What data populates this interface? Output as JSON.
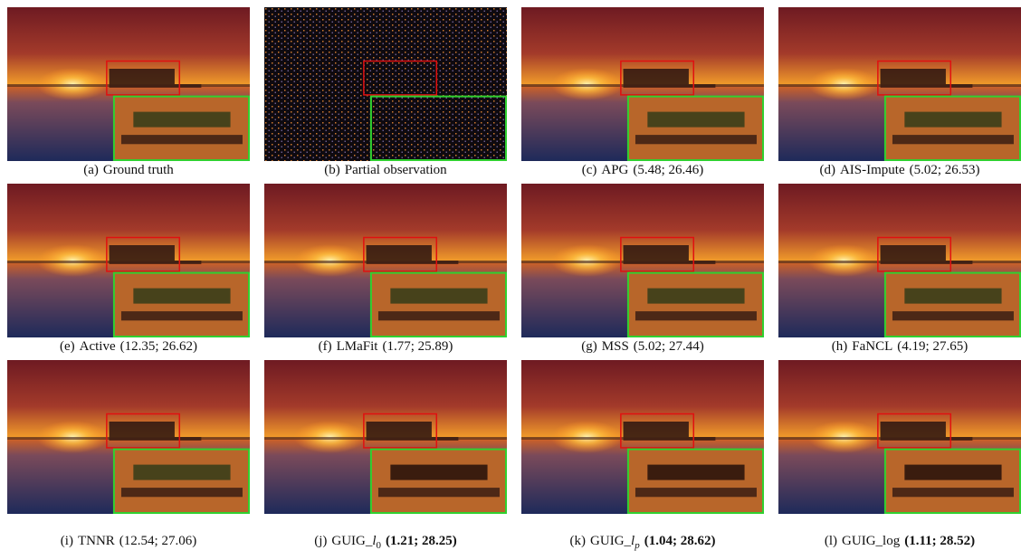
{
  "figure": {
    "panels": [
      {
        "label": "(a)",
        "name": "Ground truth"
      },
      {
        "label": "(b)",
        "name": "Partial observation"
      },
      {
        "label": "(c)",
        "name": "APG",
        "score": "(5.48; 26.46)"
      },
      {
        "label": "(d)",
        "name": "AIS-Impute",
        "score": "(5.02; 26.53)"
      },
      {
        "label": "(e)",
        "name": "Active",
        "score": "(12.35; 26.62)"
      },
      {
        "label": "(f)",
        "name": "LMaFit",
        "score": "(1.77; 25.89)"
      },
      {
        "label": "(g)",
        "name": "MSS",
        "score": "(5.02; 27.44)"
      },
      {
        "label": "(h)",
        "name": "FaNCL",
        "score": "(4.19; 27.65)"
      },
      {
        "label": "(i)",
        "name": "TNNR",
        "score": "(12.54; 27.06)"
      },
      {
        "label": "(j)",
        "name": "GUIG_",
        "math": "l",
        "sub": "0",
        "score": "(1.21; 28.25)",
        "bold": true
      },
      {
        "label": "(k)",
        "name": "GUIG_",
        "math": "l",
        "sub": "p",
        "score": "(1.04; 28.62)",
        "bold": true
      },
      {
        "label": "(l)",
        "name": "GUIG_log",
        "score": "(1.11; 28.52)",
        "bold": true
      }
    ]
  }
}
